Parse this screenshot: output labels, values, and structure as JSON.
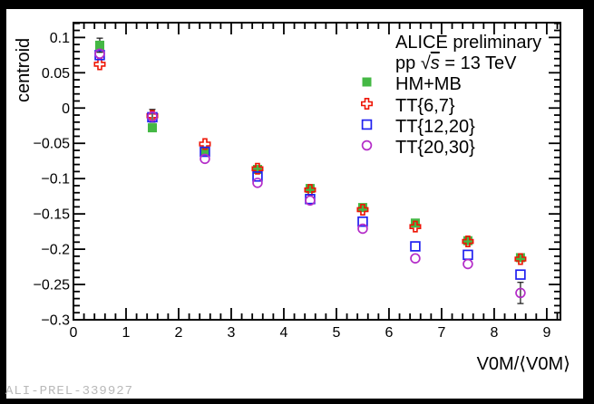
{
  "watermark": "ALI-PREL-339927",
  "chart_data": {
    "type": "scatter",
    "title": "",
    "xlabel": "V0M/⟨V0M⟩",
    "ylabel": "centroid",
    "xlim": [
      0,
      9.26
    ],
    "ylim": [
      -0.3,
      0.121
    ],
    "grid": false,
    "legend_position": "top-right",
    "x_major_ticks": [
      0,
      1,
      2,
      3,
      4,
      5,
      6,
      7,
      8,
      9
    ],
    "x_minor_step": 0.2,
    "y_major_ticks": [
      0.1,
      0.05,
      0,
      -0.05,
      -0.1,
      -0.15,
      -0.2,
      -0.25,
      -0.3
    ],
    "y_minor_step": 0.01,
    "annotations": [
      {
        "text": "ALICE preliminary"
      },
      {
        "text": "pp √s = 13 TeV",
        "parts": [
          "pp ",
          "√",
          "s",
          " = 13 TeV"
        ]
      }
    ],
    "x": [
      0.5,
      1.5,
      2.5,
      3.5,
      4.5,
      5.5,
      6.5,
      7.5,
      8.5
    ],
    "series": [
      {
        "name": "HM+MB",
        "marker": "square-filled",
        "color": "#44b844",
        "values": [
          0.089,
          -0.028,
          -0.061,
          -0.087,
          -0.114,
          -0.141,
          -0.163,
          -0.188,
          -0.212
        ],
        "yerr": [
          0.01,
          0,
          0,
          0,
          0,
          0,
          0,
          0,
          0
        ]
      },
      {
        "name": "TT{6,7}",
        "marker": "cross-open",
        "color": "#ee1505",
        "values": [
          0.062,
          -0.011,
          -0.051,
          -0.086,
          -0.116,
          -0.144,
          -0.168,
          -0.189,
          -0.214
        ],
        "yerr": [
          0.005,
          0.009,
          0,
          0,
          0,
          0,
          0,
          0,
          0
        ]
      },
      {
        "name": "TT{12,20}",
        "marker": "square-open",
        "color": "#2020f0",
        "values": [
          0.075,
          -0.013,
          -0.062,
          -0.097,
          -0.129,
          -0.161,
          -0.196,
          -0.208,
          -0.236
        ],
        "yerr": [
          0,
          0,
          0,
          0,
          0,
          0,
          0,
          0,
          0
        ]
      },
      {
        "name": "TT{20,30}",
        "marker": "circle-open",
        "color": "#b42cc8",
        "values": [
          0.077,
          -0.012,
          -0.072,
          -0.106,
          -0.131,
          -0.171,
          -0.213,
          -0.221,
          -0.262
        ],
        "yerr": [
          0,
          0,
          0,
          0,
          0,
          0,
          0,
          0,
          0.015
        ]
      }
    ]
  }
}
